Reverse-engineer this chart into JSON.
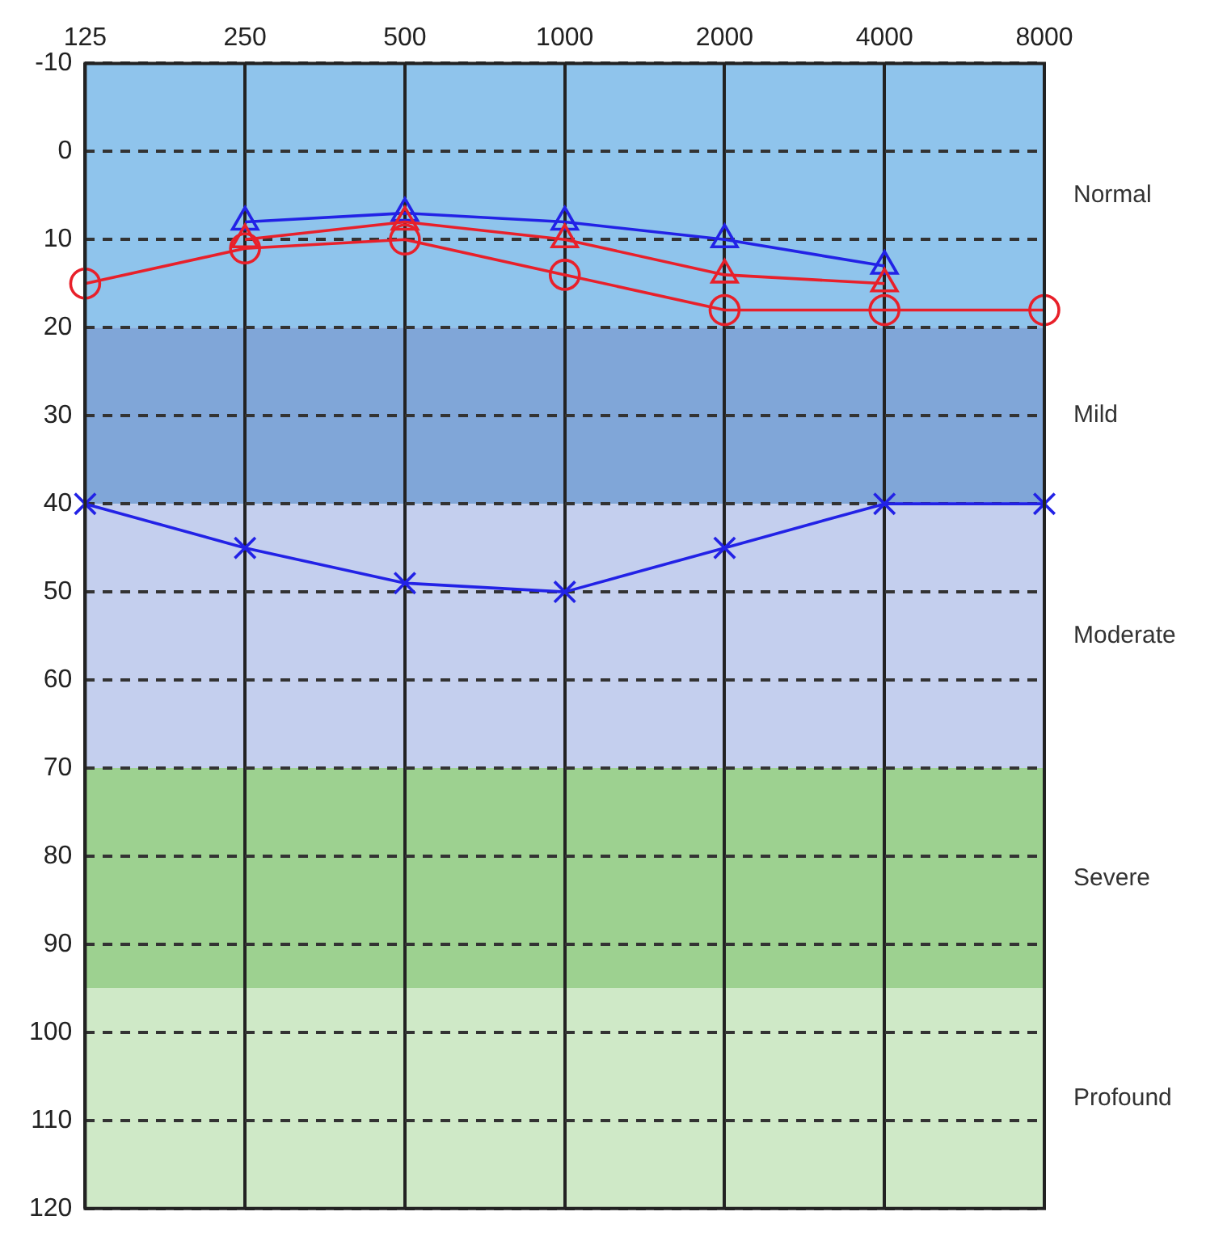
{
  "chart_data": {
    "type": "line",
    "categories": [
      "125",
      "250",
      "500",
      "1000",
      "2000",
      "4000",
      "8000"
    ],
    "series": [
      {
        "color": "#e8202a",
        "marker": "circle",
        "values": [
          15,
          11,
          10,
          14,
          18,
          18,
          18
        ]
      },
      {
        "color": "#e8202a",
        "marker": "triangle",
        "values": [
          null,
          10,
          8,
          10,
          14,
          15,
          null
        ]
      },
      {
        "color": "#2222e6",
        "marker": "triangle",
        "values": [
          null,
          8,
          7,
          8,
          10,
          13,
          null
        ]
      },
      {
        "color": "#2222e6",
        "marker": "cross",
        "values": [
          40,
          45,
          49,
          50,
          45,
          40,
          40
        ]
      }
    ],
    "ylim": [
      120,
      -10
    ],
    "yticks": [
      -10,
      0,
      10,
      20,
      30,
      40,
      50,
      60,
      70,
      80,
      90,
      100,
      110,
      120
    ],
    "bands": [
      {
        "axis": "y",
        "from": -10,
        "to": 20,
        "label": "Normal",
        "color": "#8fc4ec"
      },
      {
        "axis": "y",
        "from": 20,
        "to": 40,
        "label": "Mild",
        "color": "#80a6d8"
      },
      {
        "axis": "y",
        "from": 40,
        "to": 70,
        "label": "Moderate",
        "color": "#c4cfee"
      },
      {
        "axis": "y",
        "from": 70,
        "to": 95,
        "label": "Severe",
        "color": "#9dd190"
      },
      {
        "axis": "y",
        "from": 95,
        "to": 120,
        "label": "Profound",
        "color": "#cfe9c7"
      }
    ],
    "grid": true,
    "legend": false,
    "line_style": "solid"
  }
}
